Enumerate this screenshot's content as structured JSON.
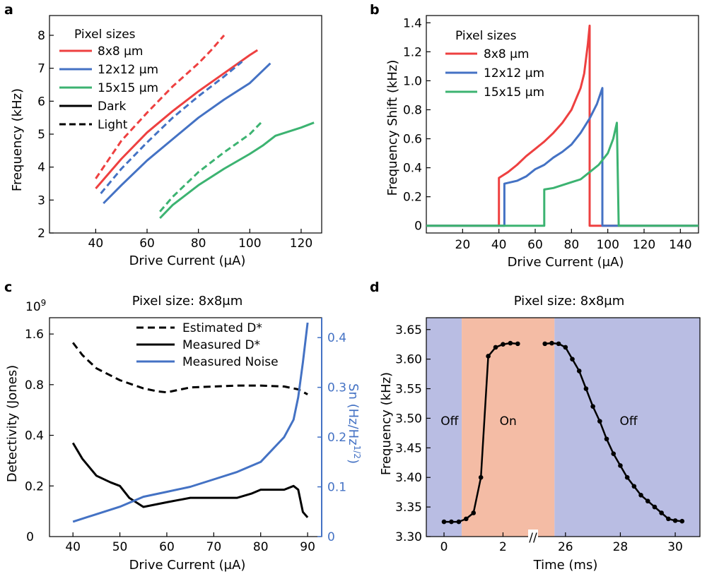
{
  "panels": {
    "a": "a",
    "b": "b",
    "c": "c",
    "d": "d"
  },
  "colors": {
    "red": "#ee4040",
    "blue": "#4472c4",
    "green": "#3cb371",
    "black": "#000000",
    "d_on": "#f4bca5",
    "d_off": "#b9bde3"
  },
  "chart_data": [
    {
      "type": "line",
      "panel": "a",
      "xlabel": "Drive Current (μA)",
      "ylabel": "Frequency (kHz)",
      "xlim": [
        22,
        128
      ],
      "ylim": [
        2,
        8.6
      ],
      "xticks": [
        40,
        60,
        80,
        100,
        120
      ],
      "yticks": [
        2,
        3,
        4,
        5,
        6,
        7,
        8
      ],
      "legend_title": "Pixel sizes",
      "legend_position": "top-left",
      "legend": [
        {
          "label": "8x8 μm",
          "color": "red",
          "style": "solid"
        },
        {
          "label": "12x12 μm",
          "color": "blue",
          "style": "solid"
        },
        {
          "label": "15x15 μm",
          "color": "green",
          "style": "solid"
        },
        {
          "label": "Dark",
          "color": "black",
          "style": "solid"
        },
        {
          "label": "Light",
          "color": "black",
          "style": "dashed"
        }
      ],
      "series": [
        {
          "name": "8x8 μm Dark",
          "color": "red",
          "dash": false,
          "x": [
            40,
            50,
            60,
            70,
            80,
            90,
            100,
            103
          ],
          "y": [
            3.35,
            4.25,
            5.05,
            5.7,
            6.3,
            6.85,
            7.4,
            7.55
          ]
        },
        {
          "name": "8x8 μm Light",
          "color": "red",
          "dash": true,
          "x": [
            40,
            50,
            60,
            70,
            80,
            85,
            90
          ],
          "y": [
            3.65,
            4.8,
            5.65,
            6.45,
            7.15,
            7.55,
            8.0
          ]
        },
        {
          "name": "12x12 μm Dark",
          "color": "blue",
          "dash": false,
          "x": [
            43,
            50,
            60,
            70,
            80,
            90,
            100,
            108
          ],
          "y": [
            2.9,
            3.45,
            4.2,
            4.85,
            5.5,
            6.05,
            6.55,
            7.15
          ]
        },
        {
          "name": "12x12 μm Light",
          "color": "blue",
          "dash": true,
          "x": [
            42,
            50,
            60,
            70,
            80,
            90,
            97
          ],
          "y": [
            3.2,
            3.95,
            4.75,
            5.5,
            6.15,
            6.75,
            7.2
          ]
        },
        {
          "name": "15x15 μm Dark",
          "color": "green",
          "dash": false,
          "x": [
            65,
            70,
            80,
            90,
            100,
            105,
            110,
            120,
            125
          ],
          "y": [
            2.45,
            2.85,
            3.45,
            3.95,
            4.4,
            4.65,
            4.95,
            5.2,
            5.35
          ]
        },
        {
          "name": "15x15 μm Light",
          "color": "green",
          "dash": true,
          "x": [
            65,
            70,
            80,
            90,
            100,
            105
          ],
          "y": [
            2.65,
            3.1,
            3.85,
            4.45,
            5.0,
            5.4
          ]
        }
      ]
    },
    {
      "type": "line",
      "panel": "b",
      "xlabel": "Drive Current (μA)",
      "ylabel": "Frequency Shift (kHz)",
      "xlim": [
        0,
        150
      ],
      "ylim": [
        -0.05,
        1.45
      ],
      "xticks": [
        20,
        40,
        60,
        80,
        100,
        120,
        140
      ],
      "yticks": [
        0,
        0.2,
        0.4,
        0.6,
        0.8,
        1.0,
        1.2,
        1.4
      ],
      "ytick_labels": [
        "0",
        "0.2",
        "0.4",
        "0.6",
        "0.8",
        "1.0",
        "1.2",
        "1.4"
      ],
      "legend_title": "Pixel sizes",
      "legend_position": "top-left",
      "legend": [
        {
          "label": "8x8 μm",
          "color": "red"
        },
        {
          "label": "12x12 μm",
          "color": "blue"
        },
        {
          "label": "15x15 μm",
          "color": "green"
        }
      ],
      "series": [
        {
          "name": "8x8 μm",
          "color": "red",
          "x": [
            0,
            40,
            40,
            45,
            50,
            55,
            60,
            65,
            70,
            75,
            80,
            85,
            87,
            89,
            90,
            90,
            150
          ],
          "y": [
            0,
            0,
            0.33,
            0.37,
            0.42,
            0.48,
            0.53,
            0.58,
            0.64,
            0.71,
            0.8,
            0.95,
            1.05,
            1.25,
            1.38,
            0,
            0
          ]
        },
        {
          "name": "12x12 μm",
          "color": "blue",
          "x": [
            0,
            43,
            43,
            50,
            55,
            60,
            65,
            70,
            75,
            80,
            85,
            90,
            94,
            97,
            97,
            150
          ],
          "y": [
            0,
            0,
            0.29,
            0.31,
            0.34,
            0.39,
            0.42,
            0.47,
            0.51,
            0.56,
            0.64,
            0.74,
            0.84,
            0.95,
            0,
            0
          ]
        },
        {
          "name": "15x15 μm",
          "color": "green",
          "x": [
            0,
            65,
            65,
            70,
            75,
            80,
            85,
            90,
            95,
            100,
            103,
            105,
            106,
            150
          ],
          "y": [
            0,
            0,
            0.25,
            0.26,
            0.28,
            0.3,
            0.32,
            0.37,
            0.42,
            0.5,
            0.6,
            0.71,
            0,
            0
          ]
        }
      ]
    },
    {
      "type": "line",
      "panel": "c",
      "title": "Pixel size: 8x8μm",
      "xlabel": "Drive Current (μA)",
      "ylabel": "Detectivity (Jones)",
      "y2label": "Sn (Hz/Hz",
      "y2label_sup": "1/2",
      "y2label_end": ")",
      "y_exponent": "10",
      "y_exponent_sup": "9",
      "xlim": [
        35,
        93
      ],
      "xticks": [
        40,
        50,
        60,
        70,
        80,
        90
      ],
      "ylim": [
        0.1,
        2.0
      ],
      "yscale": "log",
      "yticks": [
        0.2,
        0.4,
        0.8,
        1.6
      ],
      "y_bottom_label": "0",
      "y2lim": [
        0,
        0.44
      ],
      "y2ticks": [
        0,
        0.1,
        0.2,
        0.3,
        0.4
      ],
      "y2tick_labels": [
        "0",
        "0.1",
        "0.2",
        "0.3",
        "0.4"
      ],
      "legend_position": "top-right",
      "legend": [
        {
          "label": "Estimated D*",
          "color": "black",
          "style": "dashed"
        },
        {
          "label": "Measured D*",
          "color": "black",
          "style": "solid"
        },
        {
          "label": "Measured Noise",
          "color": "blue",
          "style": "solid"
        }
      ],
      "series": [
        {
          "name": "Estimated D*",
          "color": "black",
          "dash": true,
          "axis": "left",
          "x": [
            40,
            42,
            45,
            50,
            55,
            58,
            60,
            62,
            65,
            70,
            75,
            80,
            85,
            88,
            90
          ],
          "y": [
            1.42,
            1.2,
            1.0,
            0.85,
            0.76,
            0.73,
            0.72,
            0.74,
            0.77,
            0.78,
            0.79,
            0.79,
            0.78,
            0.75,
            0.7
          ]
        },
        {
          "name": "Measured D*",
          "color": "black",
          "dash": false,
          "axis": "left",
          "x": [
            40,
            42,
            45,
            48,
            50,
            52,
            55,
            60,
            65,
            70,
            75,
            78,
            80,
            85,
            87,
            88,
            89,
            90
          ],
          "y": [
            0.36,
            0.29,
            0.23,
            0.21,
            0.2,
            0.17,
            0.15,
            0.16,
            0.17,
            0.17,
            0.17,
            0.18,
            0.19,
            0.19,
            0.2,
            0.19,
            0.14,
            0.13
          ]
        },
        {
          "name": "Measured Noise",
          "color": "blue",
          "dash": false,
          "axis": "right",
          "x": [
            40,
            45,
            50,
            55,
            60,
            65,
            70,
            75,
            80,
            85,
            87,
            88,
            89,
            90
          ],
          "y": [
            0.03,
            0.045,
            0.06,
            0.08,
            0.09,
            0.1,
            0.115,
            0.13,
            0.15,
            0.2,
            0.235,
            0.28,
            0.35,
            0.43
          ]
        }
      ]
    },
    {
      "type": "line",
      "panel": "d",
      "title": "Pixel size: 8x8μm",
      "xlabel": "Time (ms)",
      "ylabel": "Frequency (kHz)",
      "axis_break": "//",
      "xticks": [
        0,
        2,
        26,
        28,
        30
      ],
      "ylim": [
        3.3,
        3.67
      ],
      "yticks": [
        3.3,
        3.35,
        3.4,
        3.45,
        3.5,
        3.55,
        3.6,
        3.65
      ],
      "ytick_labels": [
        "3.30",
        "3.35",
        "3.40",
        "3.45",
        "3.50",
        "3.55",
        "3.60",
        "3.65"
      ],
      "regions": [
        {
          "label": "Off",
          "state": "off"
        },
        {
          "label": "On",
          "state": "on"
        },
        {
          "label": "Off",
          "state": "off"
        }
      ],
      "segments": [
        {
          "x": [
            0,
            0.25,
            0.5,
            0.75,
            1.0,
            1.25,
            1.5,
            1.75,
            2.0,
            2.25,
            2.5
          ],
          "y": [
            3.325,
            3.325,
            3.325,
            3.33,
            3.34,
            3.4,
            3.605,
            3.62,
            3.625,
            3.627,
            3.626
          ]
        },
        {
          "x": [
            25.25,
            25.5,
            25.75,
            26.0,
            26.25,
            26.5,
            26.75,
            27.0,
            27.25,
            27.5,
            27.75,
            28.0,
            28.25,
            28.5,
            28.75,
            29.0,
            29.25,
            29.5,
            29.75,
            30.0,
            30.25
          ],
          "y": [
            3.626,
            3.627,
            3.626,
            3.62,
            3.6,
            3.58,
            3.55,
            3.52,
            3.495,
            3.465,
            3.44,
            3.42,
            3.4,
            3.385,
            3.37,
            3.36,
            3.35,
            3.34,
            3.33,
            3.327,
            3.326
          ]
        }
      ]
    }
  ]
}
